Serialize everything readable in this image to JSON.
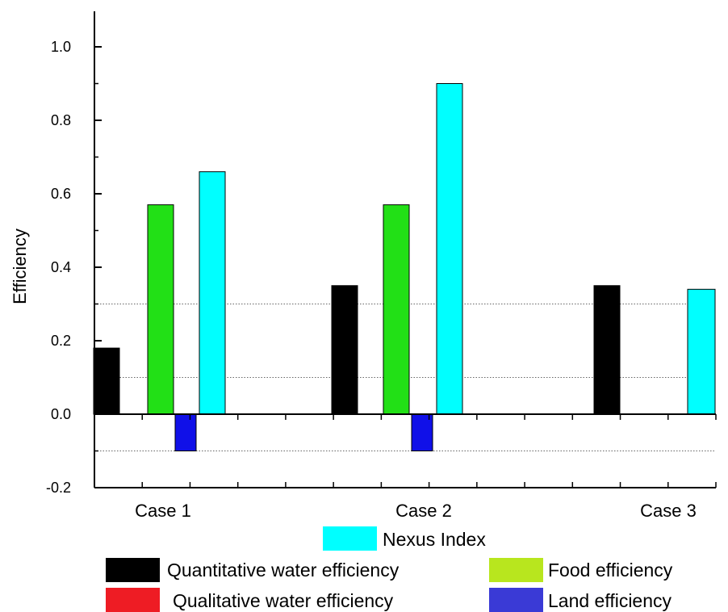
{
  "chart_data": {
    "type": "bar",
    "ylabel": "Efficiency",
    "ylim": [
      -0.2,
      1.1
    ],
    "yticks": [
      "-0.2",
      "0.0",
      "0.2",
      "0.4",
      "0.6",
      "0.8",
      "1.0"
    ],
    "ref_lines": [
      0.3,
      0.1,
      -0.1
    ],
    "categories": [
      "Case 1",
      "Case 2",
      "Case 3"
    ],
    "series": [
      {
        "name": "Quantitative water efficiency",
        "color": "#000000",
        "values": [
          0.18,
          0.35,
          0.35
        ]
      },
      {
        "name": "Food efficiency",
        "color": "#22e016",
        "values": [
          0.57,
          0.57,
          0
        ]
      },
      {
        "name": "Qualitative  water efficiency",
        "color": "#ee1c24",
        "values": [
          0,
          0,
          0
        ]
      },
      {
        "name": "Land efficiency",
        "color": "#1010e8",
        "values": [
          -0.1,
          -0.1,
          0
        ]
      },
      {
        "name": "Nexus Index",
        "color": "#00ffff",
        "values": [
          0.66,
          0.9,
          0.34
        ]
      }
    ],
    "legend": [
      {
        "label": "Nexus Index",
        "color": "#00ffff"
      },
      {
        "label": "Quantitative water efficiency",
        "color": "#000000"
      },
      {
        "label": "Food efficiency",
        "color": "#b8e61e"
      },
      {
        "label": "Qualitative  water efficiency",
        "color": "#ee1c24"
      },
      {
        "label": "Land efficiency",
        "color": "#3a3ad6"
      }
    ],
    "legend_position": "bottom",
    "grid": false
  }
}
